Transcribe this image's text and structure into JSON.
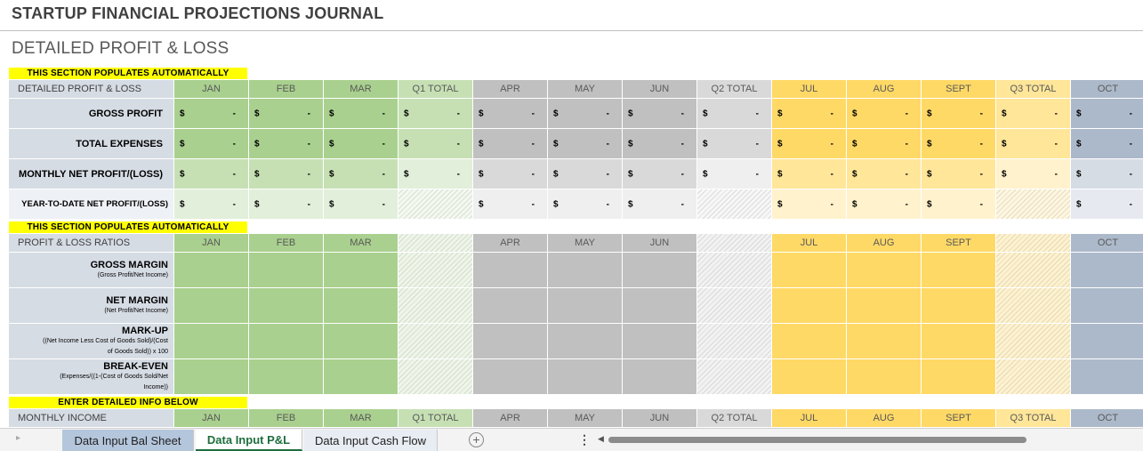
{
  "app_title": "STARTUP FINANCIAL PROJECTIONS JOURNAL",
  "page_title": "DETAILED PROFIT & LOSS",
  "banners": {
    "auto1": "THIS SECTION POPULATES AUTOMATICALLY",
    "auto2": "THIS SECTION POPULATES AUTOMATICALLY",
    "enter": "ENTER DETAILED INFO BELOW"
  },
  "pl_header": {
    "label": "DETAILED PROFIT & LOSS",
    "cols": [
      "JAN",
      "FEB",
      "MAR",
      "Q1 TOTAL",
      "APR",
      "MAY",
      "JUN",
      "Q2 TOTAL",
      "JUL",
      "AUG",
      "SEPT",
      "Q3 TOTAL",
      "OCT"
    ]
  },
  "pl_rows": [
    {
      "label": "GROSS PROFIT",
      "currency": "$",
      "value": "-"
    },
    {
      "label": "TOTAL EXPENSES",
      "currency": "$",
      "value": "-"
    },
    {
      "label": "MONTHLY NET PROFIT/(LOSS)",
      "currency": "$",
      "value": "-"
    },
    {
      "label": "YEAR-TO-DATE NET PROFIT/(LOSS)",
      "currency": "$",
      "value": "-"
    }
  ],
  "ratio_header": {
    "label": "PROFIT & LOSS RATIOS",
    "cols": [
      "JAN",
      "FEB",
      "MAR",
      "",
      "APR",
      "MAY",
      "JUN",
      "",
      "JUL",
      "AUG",
      "SEPT",
      "",
      "OCT"
    ]
  },
  "ratio_rows": [
    {
      "label": "GROSS MARGIN",
      "sub1": "(Gross Profit/Net Income)",
      "sub2": ""
    },
    {
      "label": "NET MARGIN",
      "sub1": "(Net Profit/Net Income)",
      "sub2": ""
    },
    {
      "label": "MARK-UP",
      "sub1": "((Net Income Less Cost of Goods Sold)/(Cost",
      "sub2": "of Goods Sold)) x 100"
    },
    {
      "label": "BREAK-EVEN",
      "sub1": "(Expenses/((1-(Cost of Goods Sold/Net",
      "sub2": "Income))"
    }
  ],
  "income_header": {
    "label": "MONTHLY INCOME",
    "cols": [
      "JAN",
      "FEB",
      "MAR",
      "Q1 TOTAL",
      "APR",
      "MAY",
      "JUN",
      "Q2 TOTAL",
      "JUL",
      "AUG",
      "SEPT",
      "Q3 TOTAL",
      "OCT"
    ]
  },
  "tabs": {
    "prev_arrow": "▸",
    "bal_sheet": "Data Input Bal Sheet",
    "pl": "Data Input P&L",
    "cash_flow": "Data Input Cash Flow",
    "add_icon": "+",
    "more_icon": "⋮",
    "scroll_left": "◀"
  },
  "colors": {
    "green_header": "#a9d08e",
    "green_light": "#c6e0b4",
    "green_lighter": "#e2efda",
    "gray_header": "#c0c0c0",
    "gray_light": "#d9d9d9",
    "yellow_header": "#ffd966",
    "yellow_light": "#ffe699",
    "blue_gray": "#acb9ca",
    "label_bg": "#d6dce4",
    "banner": "#ffff00"
  }
}
